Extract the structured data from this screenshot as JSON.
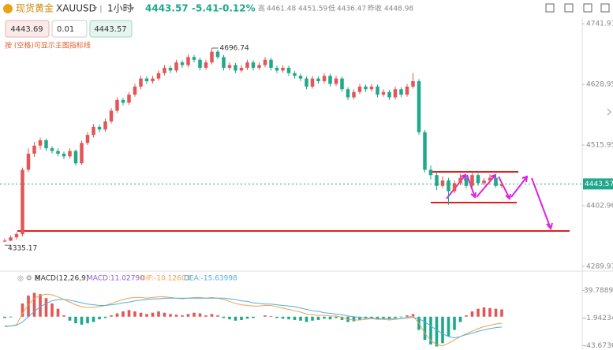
{
  "header": {
    "name": "现货黄金",
    "symbol": "XAUUSD",
    "period": "1小时",
    "price": "4443.57",
    "change": "-5.41",
    "change_pct": "-0.12%",
    "high_label": "高",
    "high": "4461.48",
    "open": "4451.59",
    "low_label": "低",
    "low": "4436.47",
    "prev_close_label": "昨收",
    "prev_close": "4448.98"
  },
  "order": {
    "bid": "4443.69",
    "lot": "0.01",
    "ask": "4443.57",
    "hint": "按 (空格)可显示主图指标线"
  },
  "chart_data": {
    "type": "candlestick",
    "up_color": "#e35656",
    "down_color": "#1fa88a",
    "ylim": [
      4284,
      4754
    ],
    "yticks": [
      4741.91,
      4628.95,
      4515.95,
      4402.96,
      4289.97
    ],
    "candles": [
      [
        4336,
        4342,
        4335.17,
        4338
      ],
      [
        4338,
        4348,
        4337,
        4344
      ],
      [
        4344,
        4354,
        4340,
        4350
      ],
      [
        4350,
        4474,
        4346,
        4470
      ],
      [
        4470,
        4510,
        4466,
        4500
      ],
      [
        4500,
        4522,
        4494,
        4515
      ],
      [
        4515,
        4530,
        4508,
        4525
      ],
      [
        4525,
        4528,
        4505,
        4510
      ],
      [
        4510,
        4514,
        4500,
        4505
      ],
      [
        4505,
        4510,
        4495,
        4500
      ],
      [
        4500,
        4504,
        4490,
        4495
      ],
      [
        4495,
        4510,
        4491,
        4505
      ],
      [
        4505,
        4508,
        4478,
        4482
      ],
      [
        4482,
        4524,
        4479,
        4520
      ],
      [
        4520,
        4540,
        4516,
        4535
      ],
      [
        4535,
        4555,
        4530,
        4550
      ],
      [
        4550,
        4554,
        4540,
        4545
      ],
      [
        4545,
        4565,
        4541,
        4560
      ],
      [
        4560,
        4585,
        4556,
        4580
      ],
      [
        4580,
        4605,
        4576,
        4600
      ],
      [
        4600,
        4604,
        4590,
        4595
      ],
      [
        4595,
        4615,
        4591,
        4610
      ],
      [
        4610,
        4630,
        4606,
        4625
      ],
      [
        4625,
        4645,
        4620,
        4640
      ],
      [
        4640,
        4644,
        4630,
        4635
      ],
      [
        4635,
        4645,
        4631,
        4640
      ],
      [
        4640,
        4655,
        4636,
        4650
      ],
      [
        4650,
        4665,
        4646,
        4660
      ],
      [
        4660,
        4664,
        4650,
        4655
      ],
      [
        4655,
        4675,
        4651,
        4670
      ],
      [
        4670,
        4674,
        4660,
        4665
      ],
      [
        4665,
        4685,
        4661,
        4680
      ],
      [
        4680,
        4684,
        4670,
        4675
      ],
      [
        4675,
        4679,
        4655,
        4660
      ],
      [
        4660,
        4675,
        4656,
        4670
      ],
      [
        4670,
        4696.74,
        4666,
        4690
      ],
      [
        4690,
        4694,
        4676,
        4680
      ],
      [
        4680,
        4684,
        4655,
        4660
      ],
      [
        4660,
        4670,
        4656,
        4665
      ],
      [
        4665,
        4669,
        4650,
        4655
      ],
      [
        4655,
        4665,
        4651,
        4660
      ],
      [
        4660,
        4675,
        4656,
        4670
      ],
      [
        4670,
        4674,
        4655,
        4660
      ],
      [
        4660,
        4670,
        4656,
        4665
      ],
      [
        4665,
        4680,
        4661,
        4675
      ],
      [
        4675,
        4679,
        4655,
        4660
      ],
      [
        4660,
        4664,
        4650,
        4655
      ],
      [
        4655,
        4665,
        4651,
        4660
      ],
      [
        4660,
        4664,
        4645,
        4650
      ],
      [
        4650,
        4654,
        4640,
        4645
      ],
      [
        4645,
        4649,
        4635,
        4640
      ],
      [
        4640,
        4644,
        4620,
        4625
      ],
      [
        4625,
        4645,
        4621,
        4640
      ],
      [
        4640,
        4644,
        4630,
        4635
      ],
      [
        4635,
        4650,
        4631,
        4645
      ],
      [
        4645,
        4649,
        4625,
        4630
      ],
      [
        4630,
        4645,
        4626,
        4640
      ],
      [
        4640,
        4644,
        4615,
        4620
      ],
      [
        4620,
        4624,
        4600,
        4605
      ],
      [
        4605,
        4620,
        4601,
        4615
      ],
      [
        4615,
        4630,
        4611,
        4625
      ],
      [
        4625,
        4629,
        4615,
        4620
      ],
      [
        4620,
        4630,
        4616,
        4625
      ],
      [
        4625,
        4629,
        4605,
        4610
      ],
      [
        4610,
        4620,
        4606,
        4615
      ],
      [
        4615,
        4619,
        4600,
        4605
      ],
      [
        4605,
        4625,
        4601,
        4620
      ],
      [
        4620,
        4624,
        4605,
        4610
      ],
      [
        4610,
        4630,
        4606,
        4625
      ],
      [
        4625,
        4650,
        4621,
        4635
      ],
      [
        4635,
        4639,
        4535,
        4540
      ],
      [
        4540,
        4544,
        4465,
        4470
      ],
      [
        4470,
        4478,
        4452,
        4460
      ],
      [
        4460,
        4466,
        4432,
        4440
      ],
      [
        4440,
        4458,
        4436,
        4450
      ],
      [
        4450,
        4455,
        4405,
        4430
      ],
      [
        4430,
        4450,
        4426,
        4445
      ],
      [
        4445,
        4462,
        4441,
        4455
      ],
      [
        4455,
        4459,
        4435,
        4440
      ],
      [
        4440,
        4466,
        4436,
        4460
      ],
      [
        4460,
        4464,
        4440,
        4445
      ],
      [
        4445,
        4455,
        4441,
        4450
      ],
      [
        4450,
        4461.48,
        4446,
        4455
      ],
      [
        4455,
        4459,
        4436.47,
        4440
      ],
      [
        4440,
        4448,
        4436,
        4443.57
      ]
    ],
    "macd": {
      "title": "MACD(12,26,9)",
      "macd_label": "MACD:11.02790",
      "dif_label": "DIF:-10.12603",
      "dea_label": "DEA:-15.63998",
      "ylim": [
        -50.3,
        49.7
      ],
      "yticks": [
        39.78899,
        -1.94234,
        -43.67367
      ],
      "dif_color": "#f0a050",
      "dea_color": "#4fb0e0",
      "hist": [
        -2,
        -1,
        0,
        20,
        32,
        36,
        34,
        28,
        20,
        12,
        2,
        -6,
        -10,
        -12,
        -10,
        -8,
        -4,
        -2,
        2,
        5,
        8,
        10,
        8,
        6,
        4,
        6,
        8,
        6,
        4,
        3,
        2,
        4,
        6,
        5,
        2,
        4,
        2,
        -2,
        -4,
        -6,
        -5,
        -3,
        -2,
        0,
        2,
        1,
        -2,
        -3,
        -4,
        -5,
        -6,
        -8,
        -6,
        -5,
        -3,
        -4,
        -2,
        -5,
        -8,
        -7,
        -5,
        -3,
        -2,
        -4,
        -3,
        -4,
        -2,
        -1,
        2,
        4,
        -20,
        -35,
        -42,
        -45,
        -40,
        -30,
        -20,
        -8,
        2,
        8,
        12,
        14,
        13,
        12,
        11.0279
      ],
      "dif": [
        -15,
        -14,
        -12,
        5,
        18,
        28,
        32,
        34,
        33,
        30,
        26,
        22,
        18,
        15,
        14,
        14,
        15,
        17,
        20,
        23,
        26,
        28,
        29,
        29,
        28,
        29,
        30,
        30,
        29,
        28,
        27,
        28,
        29,
        29,
        28,
        29,
        28,
        26,
        23,
        20,
        18,
        17,
        16,
        16,
        17,
        17,
        15,
        13,
        11,
        9,
        7,
        4,
        3,
        2,
        2,
        1,
        1,
        -1,
        -4,
        -5,
        -5,
        -4,
        -3,
        -4,
        -4,
        -5,
        -4,
        -3,
        -1,
        1,
        -10,
        -25,
        -36,
        -42,
        -44,
        -40,
        -35,
        -30,
        -26,
        -22,
        -18,
        -15,
        -13,
        -11,
        -10.12603
      ],
      "dea": [
        -14,
        -14,
        -13,
        -8,
        0,
        8,
        15,
        20,
        24,
        26,
        26,
        25,
        23,
        21,
        19,
        18,
        17,
        17,
        18,
        19,
        21,
        22,
        24,
        25,
        26,
        27,
        27,
        28,
        28,
        28,
        28,
        28,
        28,
        28,
        28,
        28,
        28,
        28,
        27,
        26,
        24,
        23,
        21,
        20,
        19,
        19,
        18,
        17,
        16,
        15,
        13,
        11,
        9,
        8,
        6,
        5,
        4,
        3,
        1,
        0,
        -1,
        -2,
        -2,
        -3,
        -3,
        -3,
        -3,
        -3,
        -2,
        -1,
        -3,
        -8,
        -14,
        -20,
        -26,
        -30,
        -32,
        -30,
        -27,
        -25,
        -22,
        -20,
        -18,
        -16.5,
        -15.63998
      ]
    }
  }
}
